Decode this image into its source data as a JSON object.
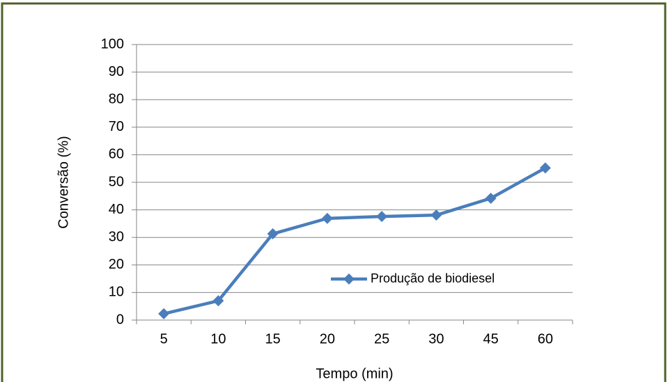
{
  "chart_data": {
    "type": "line",
    "x_label": "Tempo (min)",
    "y_label": "Conversão (%)",
    "categories": [
      "5",
      "10",
      "15",
      "20",
      "25",
      "30",
      "45",
      "60"
    ],
    "series": [
      {
        "name": "Produção de biodiesel",
        "color": "#4a7ebb",
        "marker": "diamond",
        "values": [
          2.3,
          7,
          31.3,
          36.9,
          37.6,
          38.1,
          44.2,
          55.2
        ]
      }
    ],
    "ylim": [
      0,
      100
    ],
    "yticks": [
      0,
      10,
      20,
      30,
      40,
      50,
      60,
      70,
      80,
      90,
      100
    ],
    "grid": true
  }
}
